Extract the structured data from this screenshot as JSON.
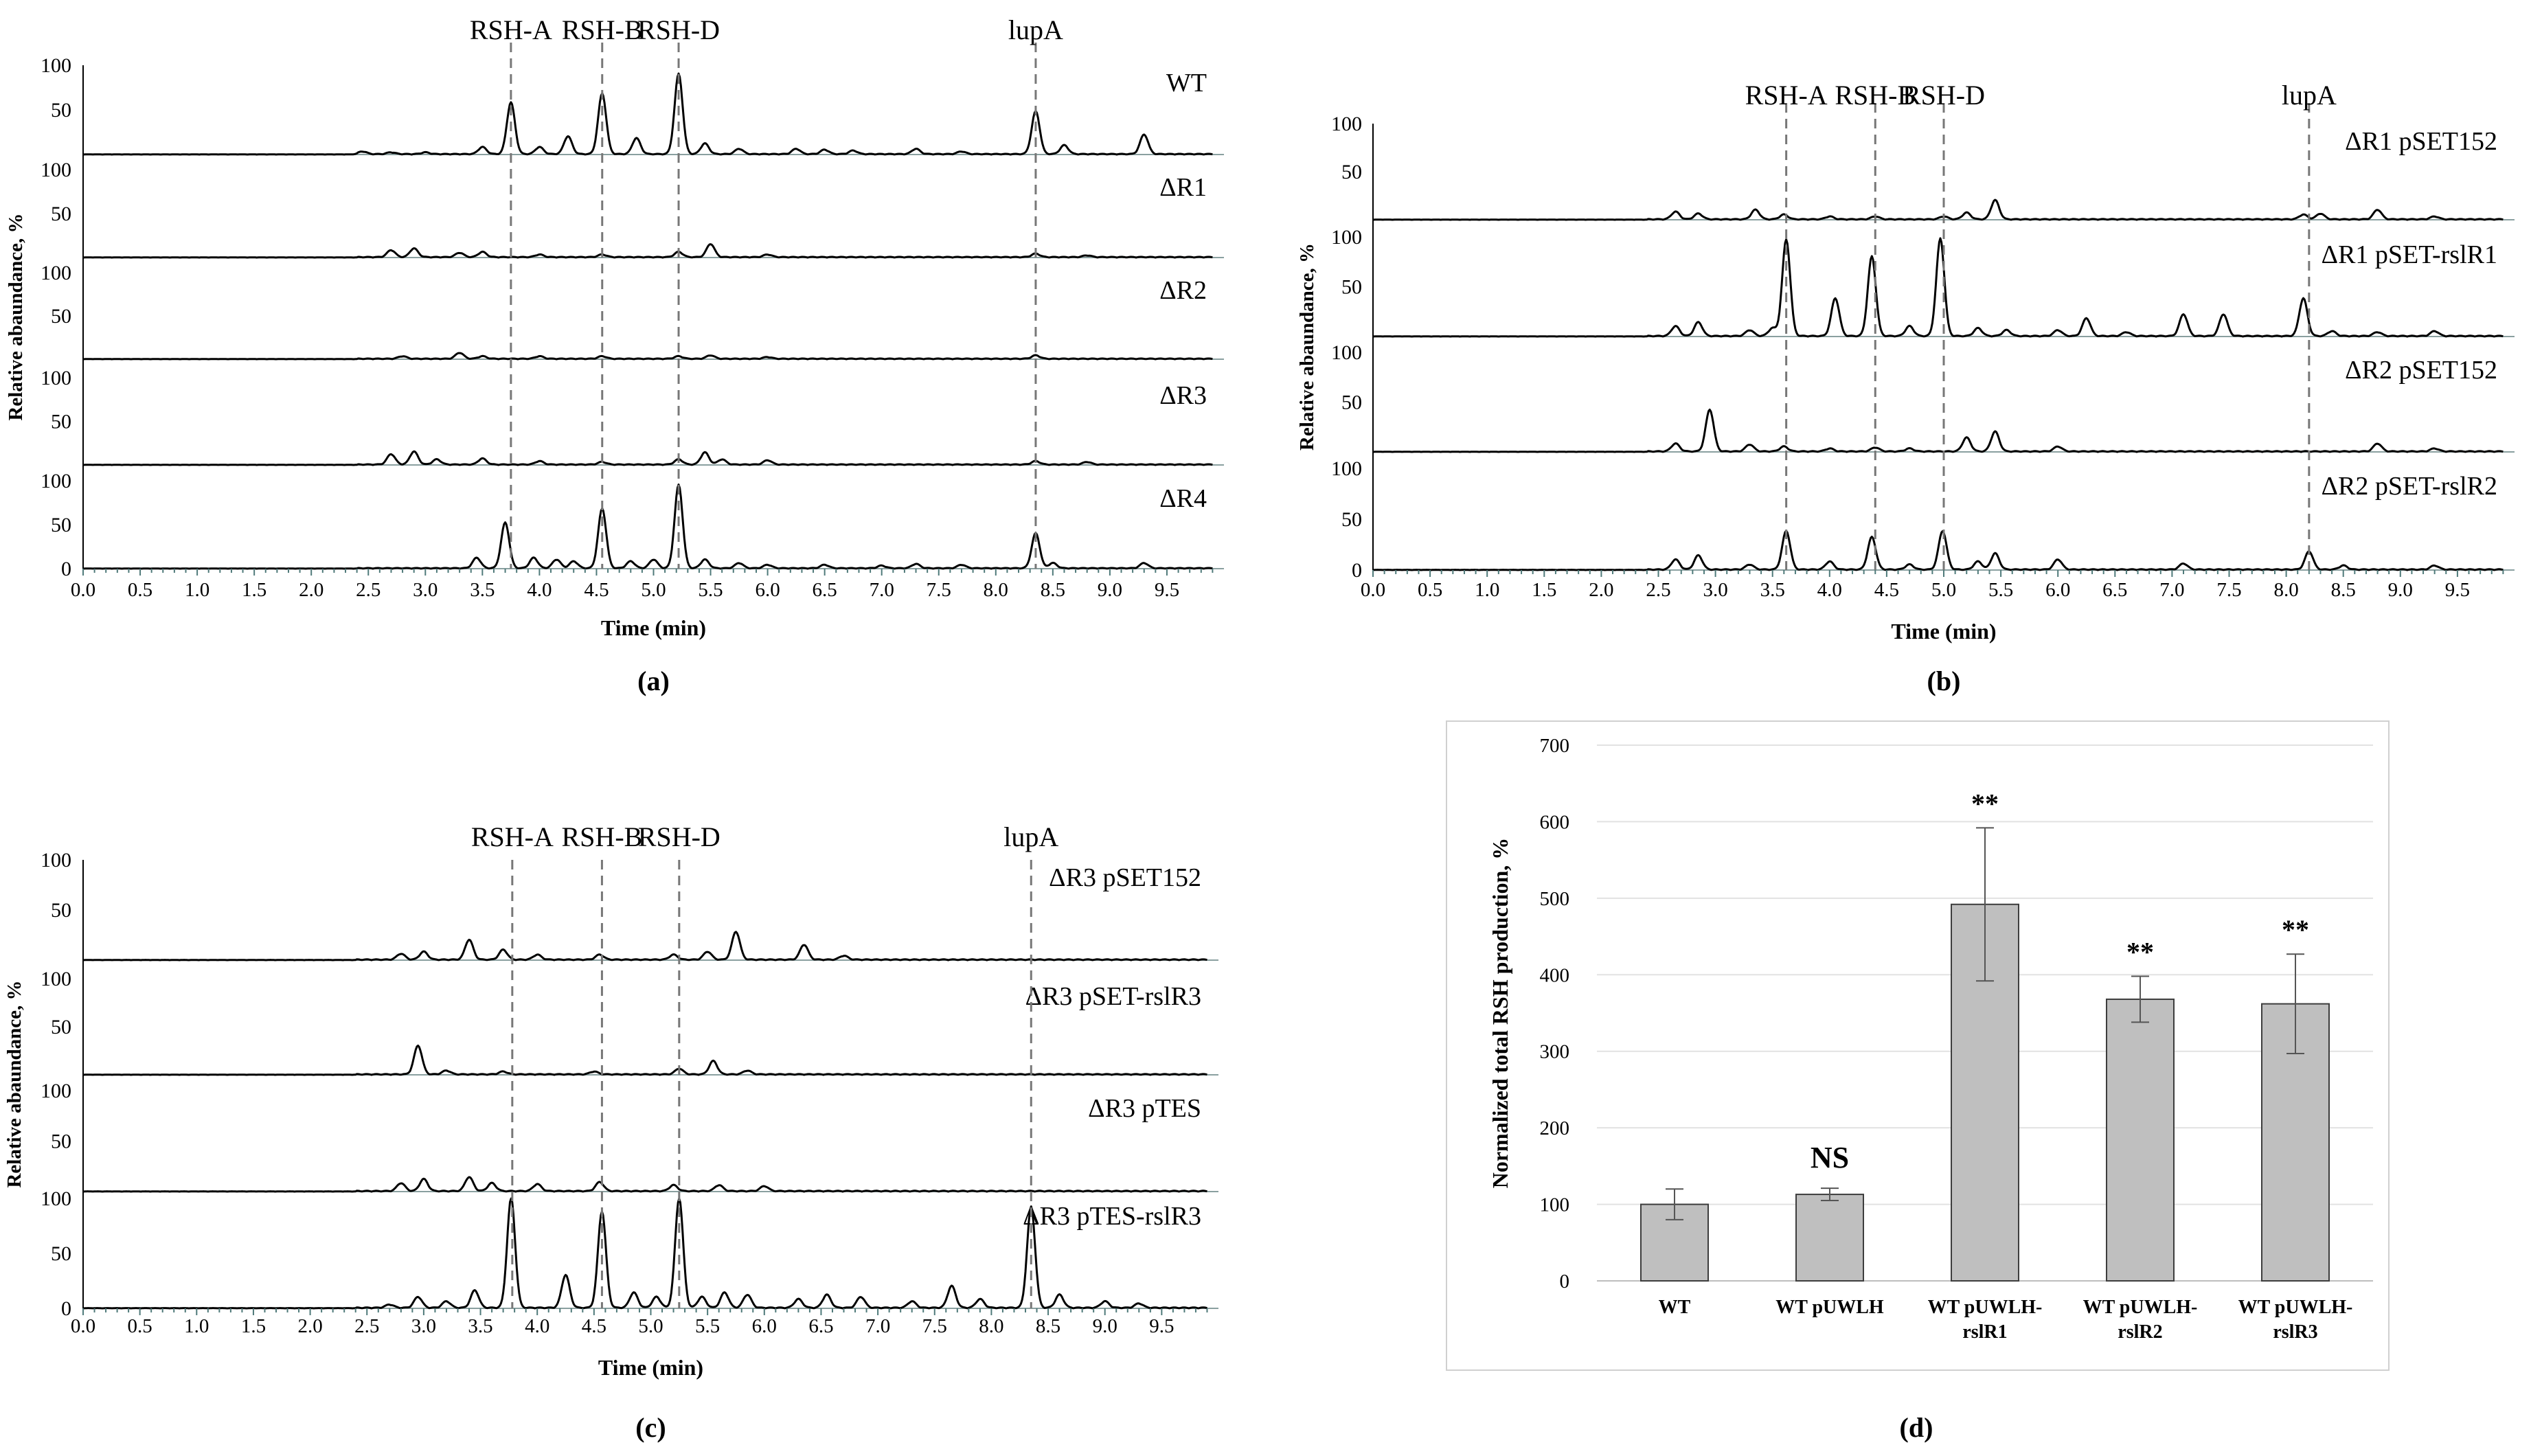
{
  "chart_data": [
    {
      "type": "line",
      "panel_label": "(a)",
      "xlabel": "Time (min)",
      "ylabel": "Relative abaundance, %",
      "xlim": [
        0,
        10
      ],
      "ylim": [
        0,
        100
      ],
      "x_ticks": [
        "0.0",
        "0.5",
        "1.0",
        "1.5",
        "2.0",
        "2.5",
        "3.0",
        "3.5",
        "4.0",
        "4.5",
        "5.0",
        "5.5",
        "6.0",
        "6.5",
        "7.0",
        "7.5",
        "8.0",
        "8.5",
        "9.0",
        "9.5"
      ],
      "y_ticks": [
        "100",
        "50",
        "0"
      ],
      "markers": [
        {
          "label": "RSH-A",
          "x": 3.75
        },
        {
          "label": "RSH-B",
          "x": 4.55
        },
        {
          "label": "RSH-D",
          "x": 5.22
        },
        {
          "label": "lupA",
          "x": 8.35
        }
      ],
      "series": [
        {
          "name": "WT",
          "peaks": [
            [
              2.45,
              3
            ],
            [
              2.7,
              2
            ],
            [
              3.0,
              2
            ],
            [
              3.5,
              8
            ],
            [
              3.75,
              58
            ],
            [
              4.0,
              8
            ],
            [
              4.25,
              20
            ],
            [
              4.55,
              68
            ],
            [
              4.85,
              18
            ],
            [
              5.22,
              90
            ],
            [
              5.45,
              12
            ],
            [
              5.75,
              6
            ],
            [
              6.25,
              6
            ],
            [
              6.5,
              5
            ],
            [
              6.75,
              4
            ],
            [
              7.3,
              6
            ],
            [
              7.7,
              3
            ],
            [
              8.35,
              48
            ],
            [
              8.6,
              10
            ],
            [
              9.3,
              22
            ]
          ]
        },
        {
          "name": "ΔR1",
          "peaks": [
            [
              2.7,
              8
            ],
            [
              2.9,
              10
            ],
            [
              3.3,
              5
            ],
            [
              3.5,
              6
            ],
            [
              4.0,
              3
            ],
            [
              4.55,
              3
            ],
            [
              5.22,
              6
            ],
            [
              5.5,
              15
            ],
            [
              6.0,
              3
            ],
            [
              8.35,
              4
            ],
            [
              8.8,
              2
            ]
          ]
        },
        {
          "name": "ΔR2",
          "peaks": [
            [
              2.8,
              3
            ],
            [
              3.3,
              7
            ],
            [
              3.5,
              3
            ],
            [
              4.0,
              3
            ],
            [
              4.55,
              3
            ],
            [
              5.22,
              3
            ],
            [
              5.5,
              4
            ],
            [
              6.0,
              2
            ],
            [
              8.35,
              4
            ]
          ]
        },
        {
          "name": "ΔR3",
          "peaks": [
            [
              2.7,
              12
            ],
            [
              2.9,
              15
            ],
            [
              3.1,
              6
            ],
            [
              3.5,
              7
            ],
            [
              4.0,
              4
            ],
            [
              4.55,
              3
            ],
            [
              5.22,
              6
            ],
            [
              5.45,
              14
            ],
            [
              5.6,
              6
            ],
            [
              6.0,
              5
            ],
            [
              8.35,
              4
            ],
            [
              8.8,
              3
            ]
          ]
        },
        {
          "name": "ΔR4",
          "peaks": [
            [
              3.45,
              12
            ],
            [
              3.7,
              52
            ],
            [
              3.95,
              12
            ],
            [
              4.15,
              10
            ],
            [
              4.3,
              8
            ],
            [
              4.55,
              68
            ],
            [
              4.8,
              8
            ],
            [
              5.0,
              10
            ],
            [
              5.22,
              95
            ],
            [
              5.45,
              10
            ],
            [
              5.75,
              6
            ],
            [
              6.0,
              4
            ],
            [
              6.5,
              4
            ],
            [
              7.0,
              3
            ],
            [
              7.3,
              5
            ],
            [
              7.7,
              4
            ],
            [
              8.35,
              40
            ],
            [
              8.5,
              6
            ],
            [
              9.3,
              6
            ]
          ]
        }
      ]
    },
    {
      "type": "line",
      "panel_label": "(b)",
      "xlabel": "Time (min)",
      "ylabel": "Relative abaundance, %",
      "xlim": [
        0,
        10
      ],
      "ylim": [
        0,
        100
      ],
      "x_ticks": [
        "0.0",
        "0.5",
        "1.0",
        "1.5",
        "2.0",
        "2.5",
        "3.0",
        "3.5",
        "4.0",
        "4.5",
        "5.0",
        "5.5",
        "6.0",
        "6.5",
        "7.0",
        "7.5",
        "8.0",
        "8.5",
        "9.0",
        "9.5"
      ],
      "y_ticks": [
        "100",
        "50",
        "0"
      ],
      "markers": [
        {
          "label": "RSH-A",
          "x": 3.62
        },
        {
          "label": "RSH-B",
          "x": 4.4
        },
        {
          "label": "RSH-D",
          "x": 5.0
        },
        {
          "label": "lupA",
          "x": 8.2
        }
      ],
      "series": [
        {
          "name": "ΔR1 pSET152",
          "peaks": [
            [
              2.65,
              8
            ],
            [
              2.85,
              6
            ],
            [
              3.35,
              10
            ],
            [
              3.6,
              5
            ],
            [
              4.0,
              3
            ],
            [
              4.4,
              3
            ],
            [
              5.0,
              3
            ],
            [
              5.2,
              7
            ],
            [
              5.45,
              20
            ],
            [
              8.15,
              5
            ],
            [
              8.3,
              6
            ],
            [
              8.8,
              10
            ],
            [
              9.3,
              3
            ]
          ]
        },
        {
          "name": "ΔR1 pSET-rslR1",
          "peaks": [
            [
              2.65,
              10
            ],
            [
              2.85,
              14
            ],
            [
              3.3,
              6
            ],
            [
              3.5,
              8
            ],
            [
              3.62,
              97
            ],
            [
              4.05,
              38
            ],
            [
              4.37,
              80
            ],
            [
              4.7,
              10
            ],
            [
              4.97,
              98
            ],
            [
              5.3,
              8
            ],
            [
              5.55,
              6
            ],
            [
              6.0,
              6
            ],
            [
              6.25,
              18
            ],
            [
              6.6,
              4
            ],
            [
              7.1,
              22
            ],
            [
              7.45,
              22
            ],
            [
              8.15,
              38
            ],
            [
              8.4,
              5
            ],
            [
              8.8,
              4
            ],
            [
              9.3,
              5
            ]
          ]
        },
        {
          "name": "ΔR2 pSET152",
          "peaks": [
            [
              2.65,
              8
            ],
            [
              2.95,
              42
            ],
            [
              3.3,
              7
            ],
            [
              3.6,
              5
            ],
            [
              4.0,
              3
            ],
            [
              4.4,
              4
            ],
            [
              4.7,
              3
            ],
            [
              5.2,
              14
            ],
            [
              5.45,
              20
            ],
            [
              6.0,
              5
            ],
            [
              8.8,
              8
            ],
            [
              9.3,
              3
            ]
          ]
        },
        {
          "name": "ΔR2 pSET-rslR2",
          "peaks": [
            [
              2.65,
              10
            ],
            [
              2.85,
              14
            ],
            [
              3.3,
              5
            ],
            [
              3.62,
              38
            ],
            [
              4.0,
              8
            ],
            [
              4.37,
              32
            ],
            [
              4.7,
              5
            ],
            [
              4.99,
              38
            ],
            [
              5.3,
              8
            ],
            [
              5.45,
              16
            ],
            [
              6.0,
              10
            ],
            [
              7.1,
              6
            ],
            [
              8.2,
              18
            ],
            [
              8.5,
              4
            ],
            [
              9.3,
              4
            ]
          ]
        }
      ]
    },
    {
      "type": "line",
      "panel_label": "(c)",
      "xlabel": "Time (min)",
      "ylabel": "Relative abaundance, %",
      "xlim": [
        0,
        10
      ],
      "ylim": [
        0,
        100
      ],
      "x_ticks": [
        "0.0",
        "0.5",
        "1.0",
        "1.5",
        "2.0",
        "2.5",
        "3.0",
        "3.5",
        "4.0",
        "4.5",
        "5.0",
        "5.5",
        "6.0",
        "6.5",
        "7.0",
        "7.5",
        "8.0",
        "8.5",
        "9.0",
        "9.5"
      ],
      "y_ticks": [
        "100",
        "50",
        "0"
      ],
      "markers": [
        {
          "label": "RSH-A",
          "x": 3.78
        },
        {
          "label": "RSH-B",
          "x": 4.57
        },
        {
          "label": "RSH-D",
          "x": 5.25
        },
        {
          "label": "lupA",
          "x": 8.35
        }
      ],
      "series": [
        {
          "name": "ΔR3 pSET152",
          "peaks": [
            [
              2.8,
              6
            ],
            [
              3.0,
              8
            ],
            [
              3.4,
              20
            ],
            [
              3.7,
              10
            ],
            [
              4.0,
              5
            ],
            [
              4.55,
              5
            ],
            [
              5.2,
              5
            ],
            [
              5.5,
              8
            ],
            [
              5.75,
              28
            ],
            [
              6.35,
              15
            ],
            [
              6.7,
              4
            ]
          ]
        },
        {
          "name": "ΔR3 pSET-rslR3",
          "peaks": [
            [
              2.95,
              30
            ],
            [
              3.2,
              4
            ],
            [
              3.7,
              3
            ],
            [
              4.5,
              3
            ],
            [
              5.25,
              6
            ],
            [
              5.55,
              14
            ],
            [
              5.85,
              4
            ]
          ]
        },
        {
          "name": "ΔR3 pTES",
          "peaks": [
            [
              2.8,
              8
            ],
            [
              3.0,
              12
            ],
            [
              3.4,
              14
            ],
            [
              3.6,
              8
            ],
            [
              4.0,
              7
            ],
            [
              4.55,
              9
            ],
            [
              5.2,
              6
            ],
            [
              5.6,
              6
            ],
            [
              6.0,
              5
            ]
          ]
        },
        {
          "name": "ΔR3 pTES-rslR3",
          "peaks": [
            [
              2.7,
              3
            ],
            [
              2.95,
              10
            ],
            [
              3.2,
              6
            ],
            [
              3.45,
              16
            ],
            [
              3.77,
              100
            ],
            [
              4.25,
              30
            ],
            [
              4.57,
              88
            ],
            [
              4.85,
              14
            ],
            [
              5.05,
              10
            ],
            [
              5.25,
              100
            ],
            [
              5.45,
              10
            ],
            [
              5.65,
              14
            ],
            [
              5.85,
              12
            ],
            [
              6.3,
              8
            ],
            [
              6.55,
              12
            ],
            [
              6.85,
              10
            ],
            [
              7.3,
              6
            ],
            [
              7.65,
              20
            ],
            [
              7.9,
              8
            ],
            [
              8.35,
              92
            ],
            [
              8.6,
              12
            ],
            [
              9.0,
              6
            ],
            [
              9.3,
              4
            ]
          ]
        }
      ]
    },
    {
      "type": "bar",
      "panel_label": "(d)",
      "categories": [
        "WT",
        "WT pUWLH",
        "WT pUWLH-rslR1",
        "WT pUWLH-rslR2",
        "WT pUWLH-rslR3"
      ],
      "category_lines": [
        [
          "WT"
        ],
        [
          "WT pUWLH"
        ],
        [
          "WT pUWLH-",
          "rslR1"
        ],
        [
          "WT pUWLH-",
          "rslR2"
        ],
        [
          "WT pUWLH-",
          "rslR3"
        ]
      ],
      "values": [
        100,
        113,
        492,
        368,
        362
      ],
      "errors": [
        20,
        8,
        100,
        30,
        65
      ],
      "significance": [
        "",
        "NS",
        "**",
        "**",
        "**"
      ],
      "ylabel": "Normalized total RSH production, %",
      "xlabel": "",
      "ylim": [
        0,
        700
      ],
      "y_ticks": [
        "0",
        "100",
        "200",
        "300",
        "400",
        "500",
        "600",
        "700"
      ],
      "grid": true
    }
  ]
}
